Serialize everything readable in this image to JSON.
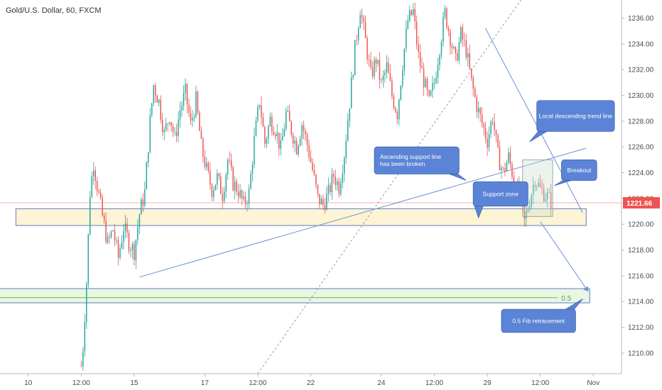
{
  "header": {
    "instrument": "Gold/U.S. Dollar, 60, FXCM"
  },
  "colors": {
    "up_candle": "#26a69a",
    "down_candle": "#ef5350",
    "trendline": "#6f8fd8",
    "zone_fill": "#fdf2d0",
    "zone_border": "#5b7fc4",
    "fib_fill": "#e7f4dd",
    "fib_line": "#5cc04a",
    "callout_fill": "#5b84d6",
    "price_line": "#ef5350",
    "breakout_box": "#c8dccb"
  },
  "chart_data": {
    "type": "candlestick",
    "instrument": "Gold/U.S. Dollar",
    "timeframe": "60",
    "source": "FXCM",
    "y_ticks": [
      "1236.00",
      "1234.00",
      "1232.00",
      "1230.00",
      "1228.00",
      "1226.00",
      "1224.00",
      "1222.00",
      "1220.00",
      "1218.00",
      "1216.00",
      "1214.00",
      "1212.00",
      "1210.00"
    ],
    "y_tick_values": [
      1236,
      1234,
      1232,
      1230,
      1228,
      1226,
      1224,
      1222,
      1220,
      1218,
      1216,
      1214,
      1212,
      1210
    ],
    "x_ticks": [
      "10",
      "12:00",
      "15",
      "17",
      "12:00",
      "22",
      "24",
      "12:00",
      "29",
      "12:00",
      "Nov"
    ],
    "x_tick_positions": [
      0,
      3,
      6,
      10,
      13,
      16,
      20,
      23,
      26,
      29,
      32
    ],
    "x_range": [
      -1.6,
      33.6
    ],
    "y_range": [
      1208.4,
      1237.4
    ],
    "current_price": "1221.66",
    "current_price_value": 1221.66,
    "price_path": [
      [
        3.0,
        1209.0
      ],
      [
        3.1,
        1210.5
      ],
      [
        3.3,
        1215.5
      ],
      [
        3.5,
        1222.5
      ],
      [
        3.7,
        1224.8
      ],
      [
        3.9,
        1223.0
      ],
      [
        4.2,
        1220.6
      ],
      [
        4.5,
        1218.5
      ],
      [
        4.8,
        1219.6
      ],
      [
        5.1,
        1217.4
      ],
      [
        5.4,
        1219.8
      ],
      [
        5.7,
        1218.6
      ],
      [
        6.0,
        1217.9
      ],
      [
        6.3,
        1220.8
      ],
      [
        6.6,
        1222.5
      ],
      [
        6.9,
        1228.0
      ],
      [
        7.1,
        1230.8
      ],
      [
        7.4,
        1229.5
      ],
      [
        7.7,
        1227.0
      ],
      [
        8.0,
        1228.5
      ],
      [
        8.3,
        1226.6
      ],
      [
        8.6,
        1228.9
      ],
      [
        8.9,
        1230.2
      ],
      [
        9.2,
        1227.7
      ],
      [
        9.5,
        1229.6
      ],
      [
        9.8,
        1226.0
      ],
      [
        10.1,
        1224.2
      ],
      [
        10.4,
        1222.7
      ],
      [
        10.7,
        1223.6
      ],
      [
        11.0,
        1222.3
      ],
      [
        11.3,
        1225.0
      ],
      [
        11.6,
        1223.2
      ],
      [
        11.9,
        1222.6
      ],
      [
        12.2,
        1221.5
      ],
      [
        12.5,
        1222.4
      ],
      [
        12.8,
        1226.5
      ],
      [
        13.1,
        1229.6
      ],
      [
        13.4,
        1226.3
      ],
      [
        13.7,
        1228.1
      ],
      [
        14.0,
        1227.4
      ],
      [
        14.3,
        1225.8
      ],
      [
        14.6,
        1228.6
      ],
      [
        14.9,
        1227.3
      ],
      [
        15.2,
        1226.0
      ],
      [
        15.5,
        1227.8
      ],
      [
        15.8,
        1226.2
      ],
      [
        16.1,
        1224.2
      ],
      [
        16.4,
        1222.0
      ],
      [
        16.7,
        1221.5
      ],
      [
        17.0,
        1222.4
      ],
      [
        17.3,
        1223.8
      ],
      [
        17.6,
        1222.9
      ],
      [
        17.9,
        1225.5
      ],
      [
        18.2,
        1229.5
      ],
      [
        18.5,
        1233.6
      ],
      [
        18.8,
        1236.8
      ],
      [
        19.1,
        1234.2
      ],
      [
        19.4,
        1231.5
      ],
      [
        19.7,
        1232.8
      ],
      [
        20.0,
        1230.8
      ],
      [
        20.3,
        1232.2
      ],
      [
        20.6,
        1230.0
      ],
      [
        20.9,
        1228.6
      ],
      [
        21.2,
        1232.5
      ],
      [
        21.5,
        1235.8
      ],
      [
        21.8,
        1236.5
      ],
      [
        22.1,
        1233.0
      ],
      [
        22.4,
        1231.2
      ],
      [
        22.7,
        1229.4
      ],
      [
        23.0,
        1231.0
      ],
      [
        23.3,
        1233.8
      ],
      [
        23.6,
        1236.4
      ],
      [
        23.9,
        1234.5
      ],
      [
        24.2,
        1232.6
      ],
      [
        24.5,
        1234.7
      ],
      [
        24.8,
        1233.5
      ],
      [
        25.1,
        1231.0
      ],
      [
        25.4,
        1229.2
      ],
      [
        25.7,
        1227.8
      ],
      [
        26.0,
        1226.5
      ],
      [
        26.3,
        1228.4
      ],
      [
        26.6,
        1225.3
      ],
      [
        26.9,
        1224.0
      ],
      [
        27.2,
        1225.2
      ],
      [
        27.5,
        1223.5
      ],
      [
        27.8,
        1222.1
      ],
      [
        28.1,
        1220.2
      ],
      [
        28.4,
        1221.9
      ],
      [
        28.7,
        1223.6
      ],
      [
        29.0,
        1222.7
      ],
      [
        29.3,
        1222.3
      ],
      [
        29.6,
        1221.8
      ]
    ],
    "zones": [
      {
        "name": "support-zone",
        "x": [
          -0.7,
          31.6
        ],
        "y": [
          1219.9,
          1221.2
        ]
      },
      {
        "name": "fib-zone",
        "x": [
          -2.7,
          31.8
        ],
        "y": [
          1213.9,
          1215.0
        ]
      }
    ],
    "fib_level": {
      "label": "0.5",
      "value": 1214.3
    },
    "lines": [
      {
        "name": "ascending-support-line",
        "x1": 6.3,
        "y1": 1215.9,
        "x2": 31.6,
        "y2": 1225.9
      },
      {
        "name": "descending-trend-line",
        "x1": 25.9,
        "y1": 1235.2,
        "x2": 31.4,
        "y2": 1220.9
      },
      {
        "name": "dotted-trend-line",
        "x1": 13.0,
        "y1": 1208.4,
        "x2": 27.9,
        "y2": 1237.4
      }
    ],
    "breakout_box": {
      "x": [
        28.0,
        29.7
      ],
      "y": [
        1220.6,
        1225.0
      ]
    },
    "projection_arrow": {
      "x1": 29.0,
      "y1": 1220.2,
      "x2": 31.7,
      "y2": 1214.8
    },
    "annotations": [
      {
        "name": "ascending-support-callout",
        "lines": [
          "Ascending support line",
          "has been broken"
        ],
        "x": [
          19.6,
          24.4
        ],
        "y": [
          1223.9,
          1226.0
        ],
        "tail": [
          24.8,
          1223.4
        ]
      },
      {
        "name": "support-zone-callout",
        "lines": [
          "Support zone"
        ],
        "x": [
          25.2,
          28.3
        ],
        "y": [
          1221.4,
          1223.3
        ],
        "tail": [
          25.5,
          1220.5
        ]
      },
      {
        "name": "descending-trendline-callout",
        "lines": [
          "Local descending trend line"
        ],
        "x": [
          28.8,
          33.2
        ],
        "y": [
          1227.2,
          1229.6
        ],
        "tail": [
          28.4,
          1226.4
        ]
      },
      {
        "name": "breakout-callout",
        "lines": [
          "Breakout"
        ],
        "x": [
          30.2,
          32.2
        ],
        "y": [
          1223.4,
          1225.0
        ],
        "tail": [
          29.8,
          1223.0
        ]
      },
      {
        "name": "fib-retracement-callout",
        "lines": [
          "0.5 Fib retracement"
        ],
        "x": [
          26.8,
          31.0
        ],
        "y": [
          1211.6,
          1213.4
        ],
        "tail": [
          31.4,
          1214.2
        ]
      }
    ]
  }
}
